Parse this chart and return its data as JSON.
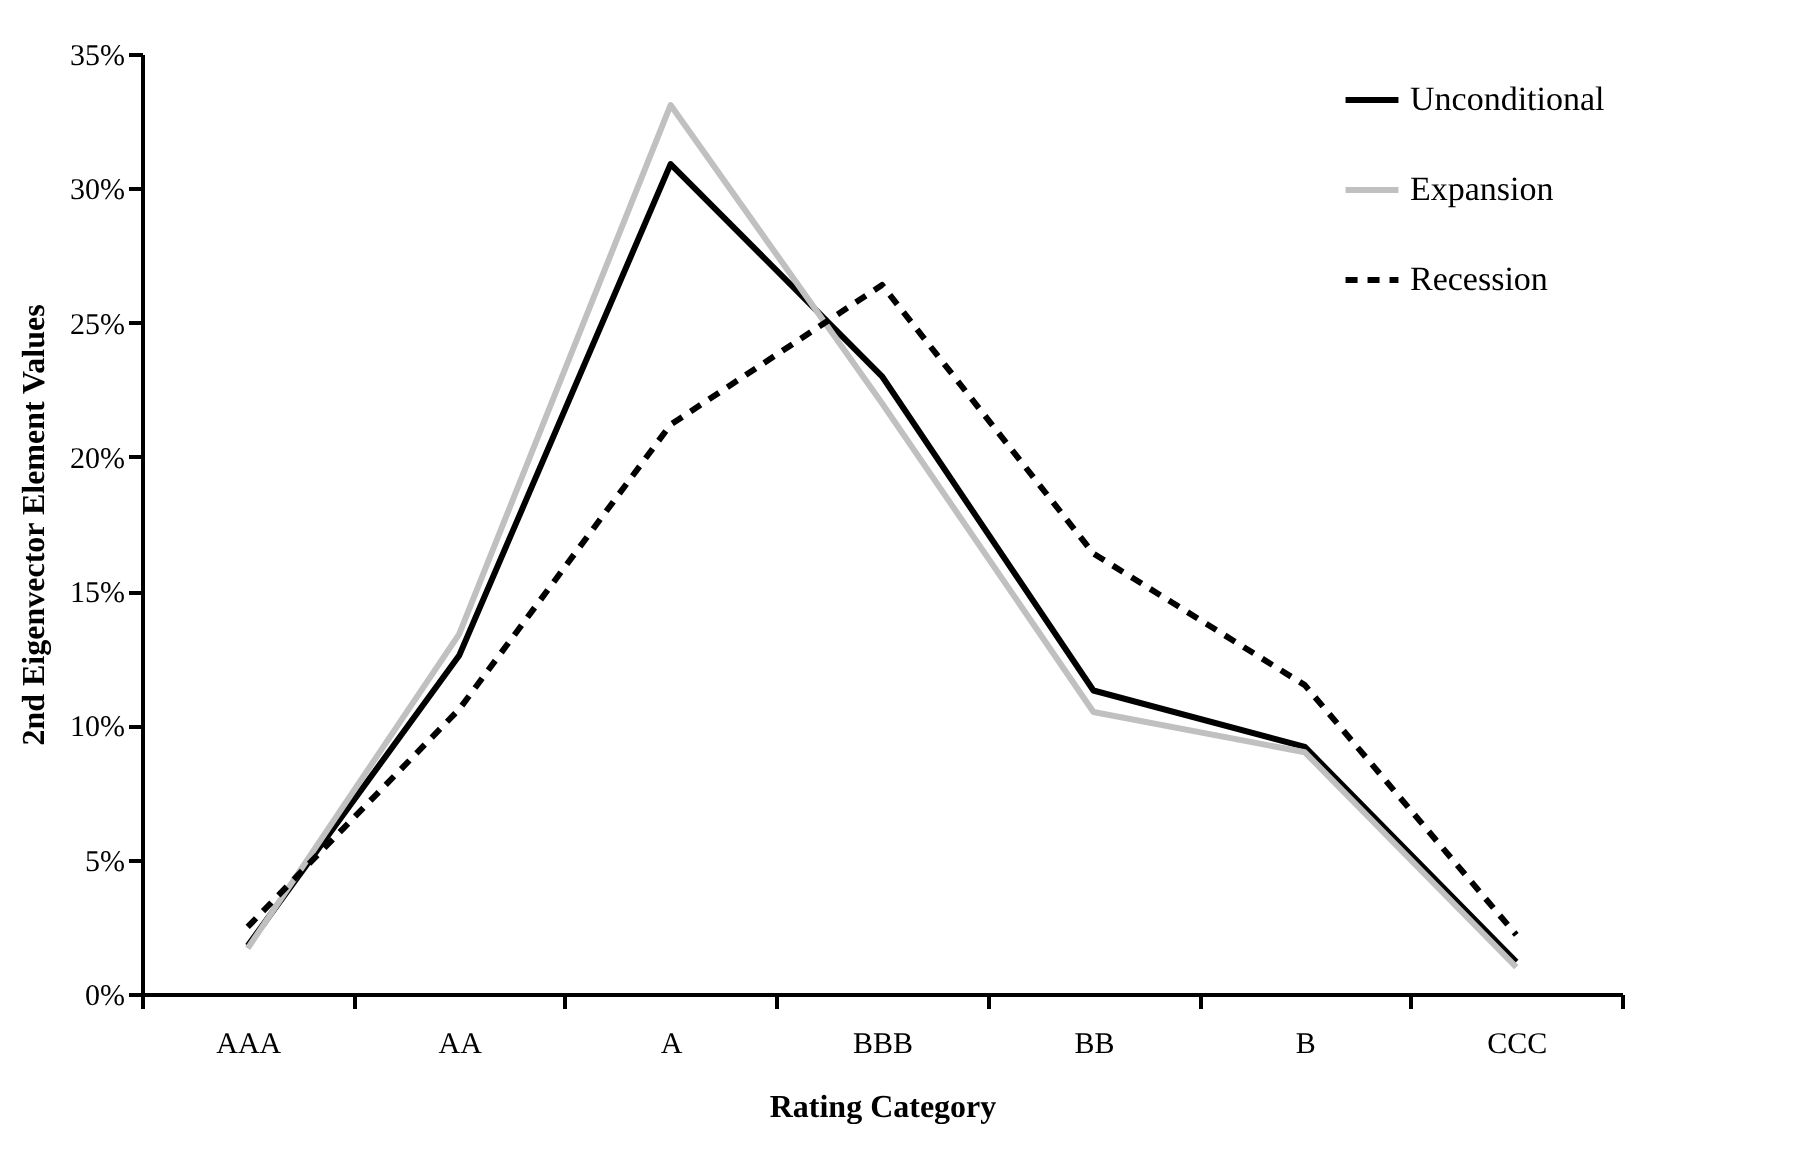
{
  "chart_data": {
    "type": "line",
    "xlabel": "Rating Category",
    "ylabel": "2nd Eigenvector Element Values",
    "categories": [
      "AAA",
      "AA",
      "A",
      "BBB",
      "BB",
      "B",
      "CCC"
    ],
    "series": [
      {
        "name": "Unconditional",
        "color": "#000000",
        "line_style": "solid",
        "values": [
          1.8,
          12.6,
          30.9,
          23.0,
          11.3,
          9.2,
          1.2
        ]
      },
      {
        "name": "Expansion",
        "color": "#c0c0c0",
        "line_style": "solid",
        "values": [
          1.7,
          13.4,
          33.1,
          22.0,
          10.5,
          9.0,
          1.0
        ]
      },
      {
        "name": "Recession",
        "color": "#000000",
        "line_style": "dashed",
        "values": [
          2.5,
          10.6,
          21.2,
          26.4,
          16.4,
          11.5,
          2.2
        ]
      }
    ],
    "ylim": [
      0,
      35
    ],
    "yticks": [
      {
        "value": 0,
        "label": "0%"
      },
      {
        "value": 5,
        "label": "5%"
      },
      {
        "value": 10,
        "label": "10%"
      },
      {
        "value": 15,
        "label": "15%"
      },
      {
        "value": 20,
        "label": "20%"
      },
      {
        "value": 25,
        "label": "25%"
      },
      {
        "value": 30,
        "label": "30%"
      },
      {
        "value": 35,
        "label": "35%"
      }
    ],
    "grid": false,
    "legend": "top right",
    "marker": "none"
  }
}
